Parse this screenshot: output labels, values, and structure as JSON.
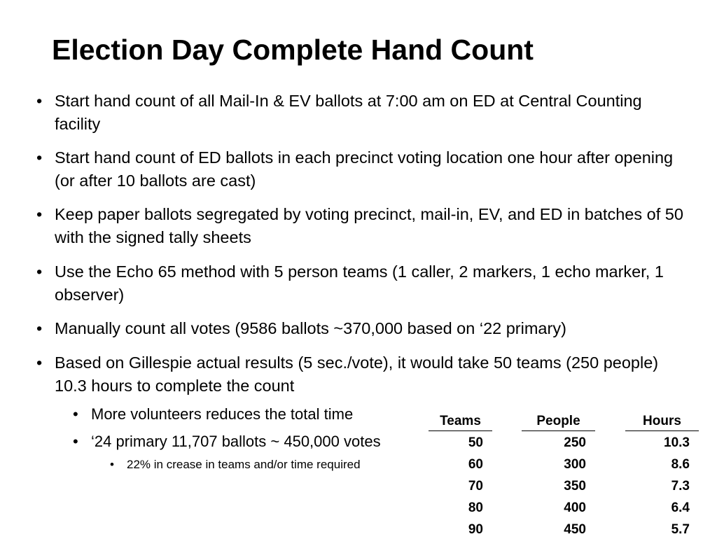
{
  "title": "Election Day Complete Hand Count",
  "bullets": [
    {
      "text": "Start hand count of all Mail-In & EV ballots at 7:00 am on ED at Central Counting facility"
    },
    {
      "text": "Start hand count of ED ballots in each precinct voting location one hour after opening (or after 10 ballots are cast)"
    },
    {
      "text": "Keep paper ballots segregated by voting precinct, mail-in, EV, and ED in batches of 50 with the signed tally sheets"
    },
    {
      "text": "Use the Echo 65 method with 5 person teams (1 caller, 2 markers, 1 echo marker, 1 observer)"
    },
    {
      "text": "Manually count all votes (9586 ballots ~370,000 based on ‘22 primary)"
    },
    {
      "text": "Based on Gillespie actual results (5 sec./vote), it would take 50 teams (250 people) 10.3 hours to complete the count",
      "sub_bullets": [
        {
          "text": "More volunteers reduces the total time"
        },
        {
          "text": "‘24 primary 11,707 ballots ~ 450,000 votes",
          "sub_bullets": [
            {
              "text": "22% in crease in teams and/or time required"
            }
          ]
        }
      ]
    }
  ],
  "table": {
    "headers": [
      "Teams",
      "People",
      "Hours"
    ],
    "rows": [
      [
        50,
        250,
        10.3
      ],
      [
        60,
        300,
        8.6
      ],
      [
        70,
        350,
        7.3
      ],
      [
        80,
        400,
        6.4
      ],
      [
        90,
        450,
        5.7
      ]
    ]
  }
}
